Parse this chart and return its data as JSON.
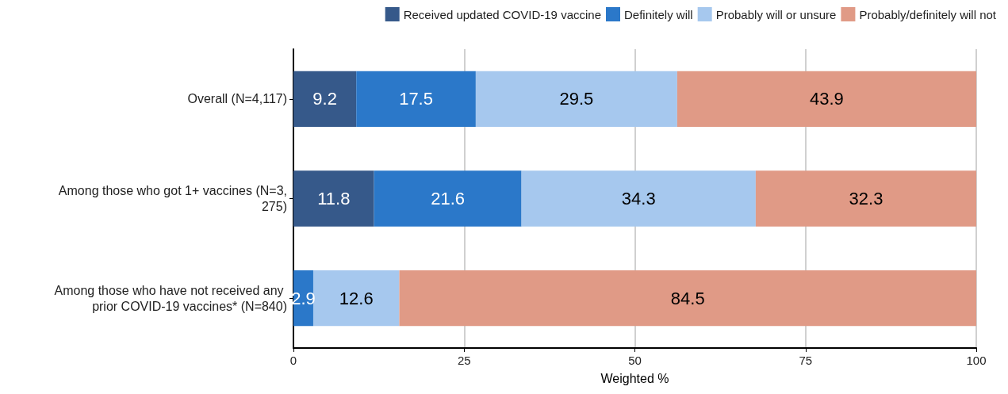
{
  "chart_data": {
    "type": "bar",
    "orientation": "horizontal",
    "stacked": true,
    "xlabel": "Weighted %",
    "categories": [
      "Overall (N=4,117)",
      "Among those who got 1+ vaccines (N=3,275)",
      "Among those who have not received any prior COVID-19 vaccines* (N=840)"
    ],
    "series": [
      {
        "name": "Received updated COVID-19 vaccine",
        "color": "#36598a",
        "values": [
          9.2,
          11.8,
          null
        ]
      },
      {
        "name": "Definitely will",
        "color": "#2b78c9",
        "values": [
          17.5,
          21.6,
          2.9
        ]
      },
      {
        "name": "Probably will or unsure",
        "color": "#a6c8ee",
        "values": [
          29.5,
          34.3,
          12.6
        ]
      },
      {
        "name": "Probably/definitely will not",
        "color": "#e09a86",
        "values": [
          43.9,
          32.3,
          84.5
        ]
      }
    ],
    "xlim": [
      0,
      100
    ],
    "xticks": [
      0,
      25,
      50,
      75,
      100
    ],
    "grid": "x",
    "legend": "top right",
    "data_labels": true
  }
}
